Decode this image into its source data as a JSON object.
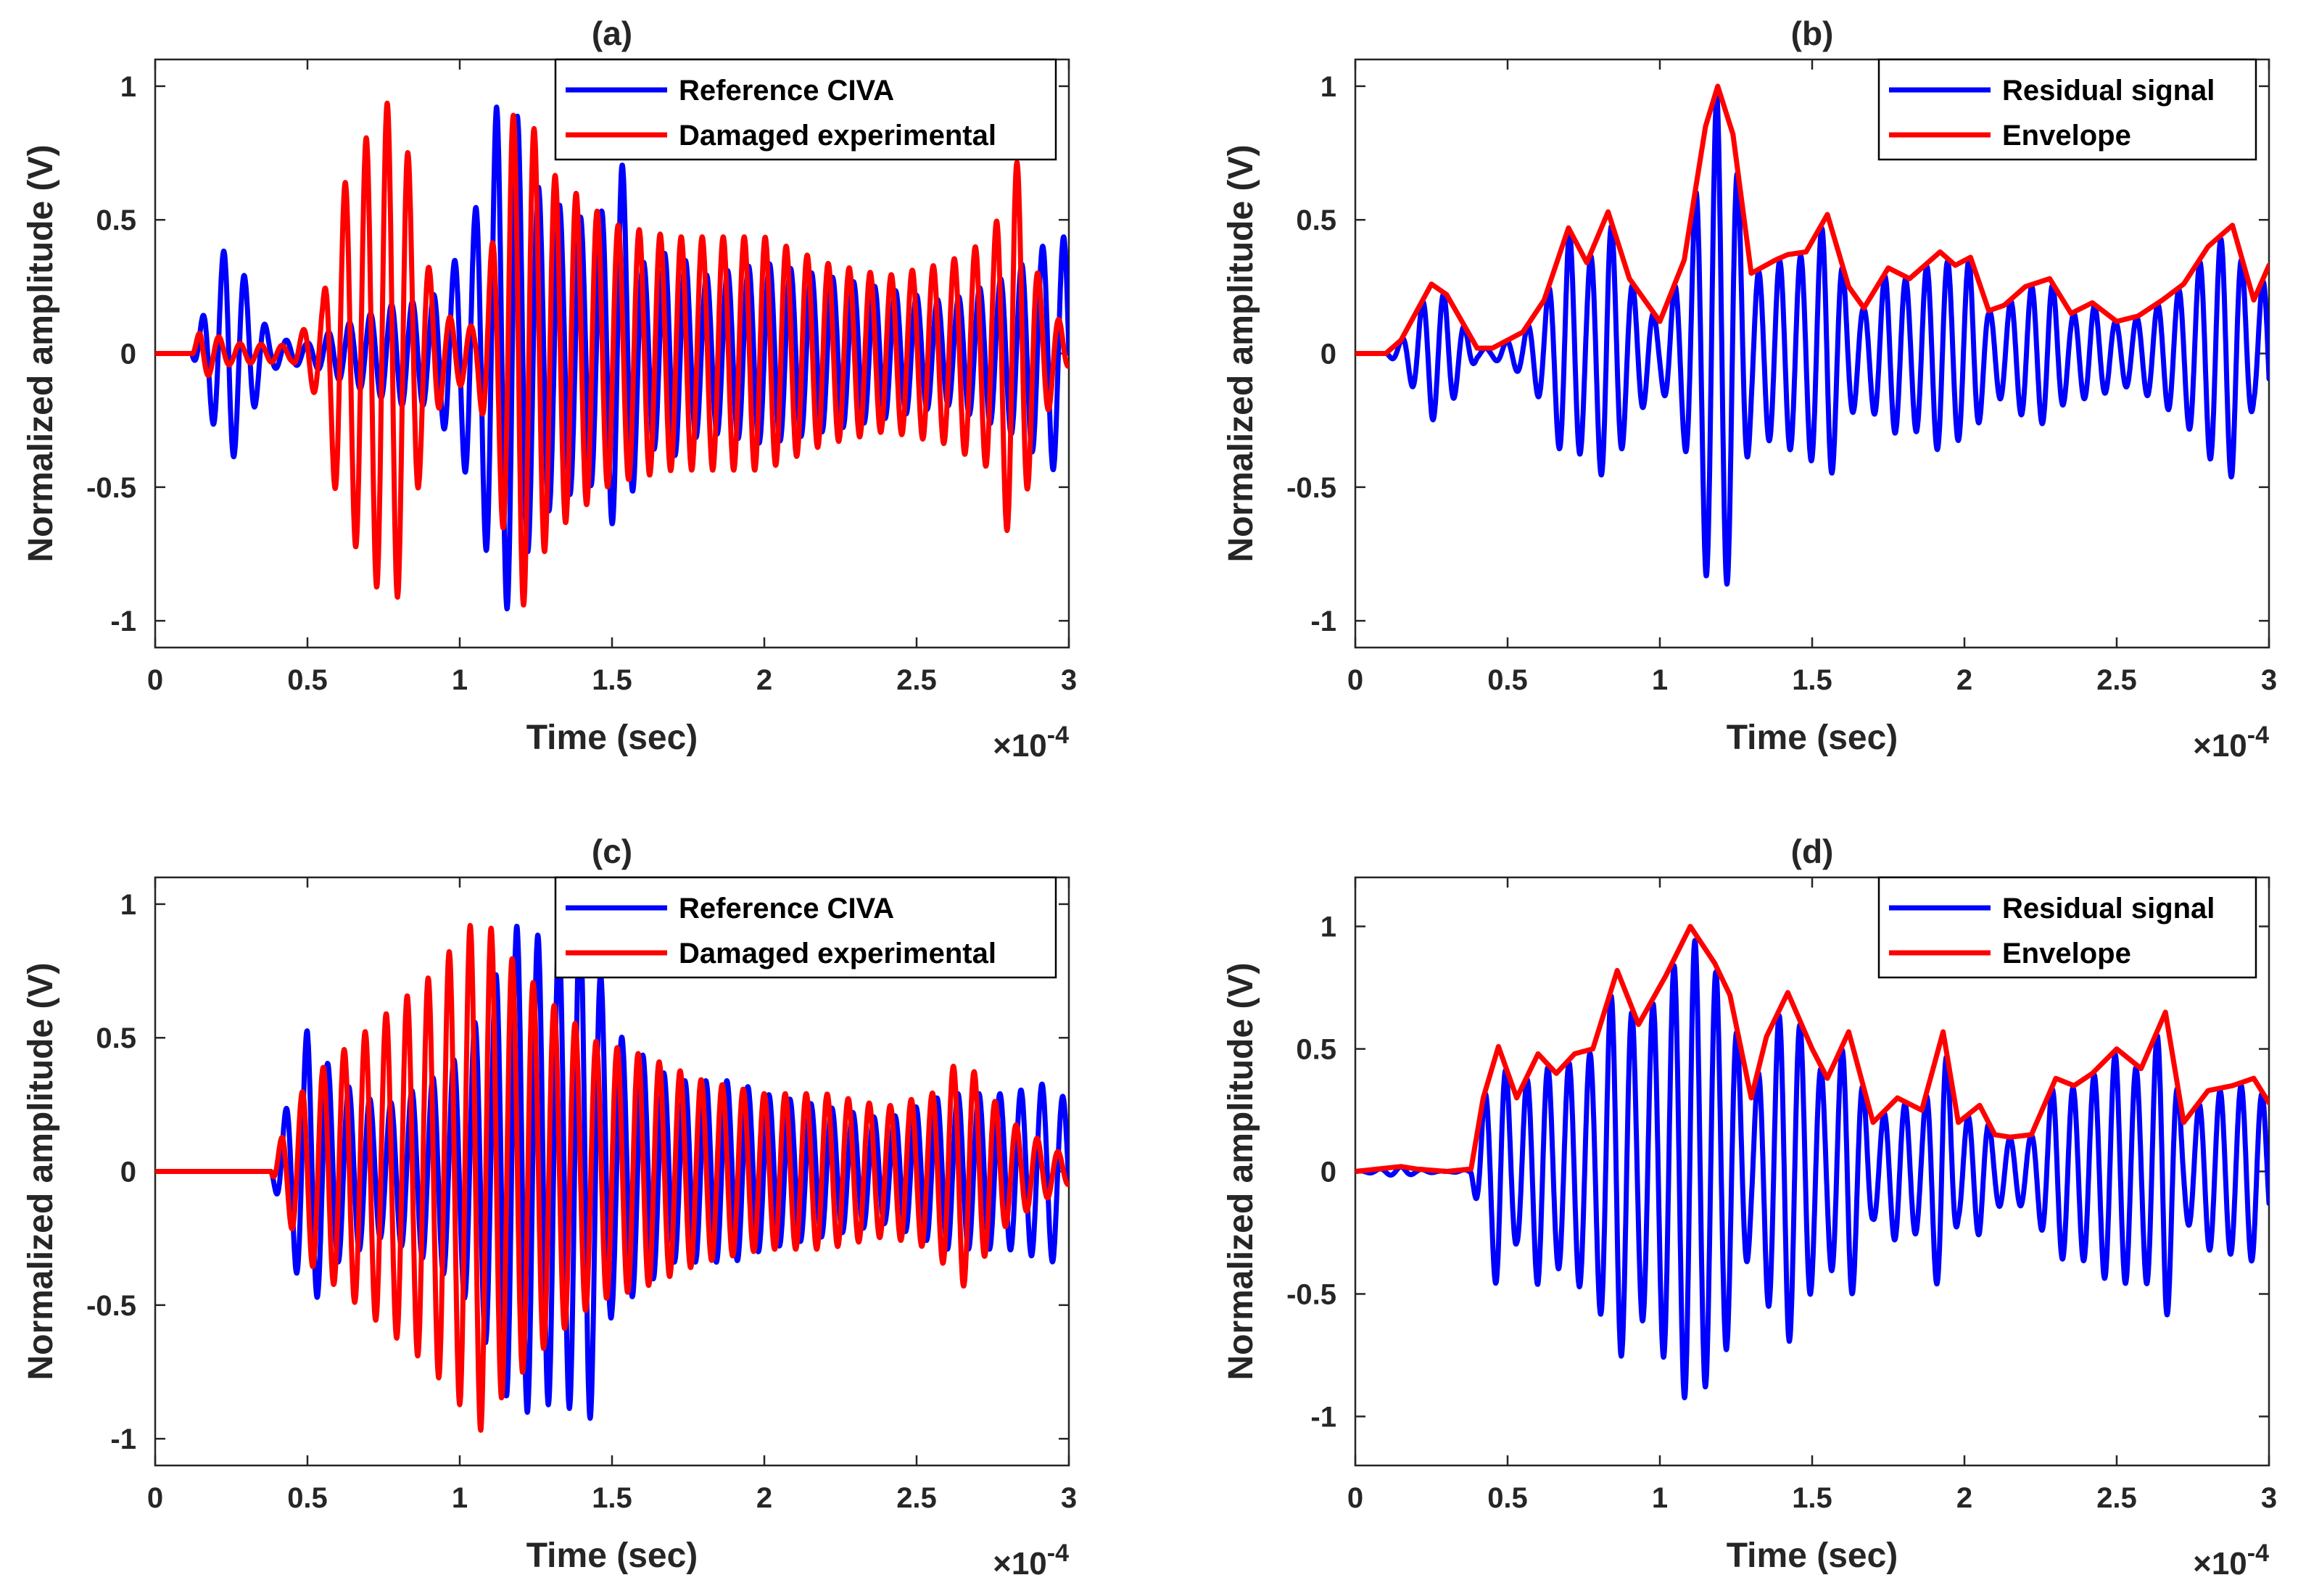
{
  "colors": {
    "blue": "#0000ff",
    "red": "#ff0000",
    "axis": "#262626"
  },
  "chart_data": [
    {
      "id": "a",
      "type": "line",
      "title": "(a)",
      "xlabel": "Time (sec)",
      "ylabel": "Normalized amplitude (V)",
      "x_exponent": "×10",
      "x_exponent_power": "-4",
      "xlim": [
        0,
        3
      ],
      "ylim": [
        -1.1,
        1.1
      ],
      "xticks": [
        0,
        0.5,
        1,
        1.5,
        2,
        2.5,
        3
      ],
      "xtick_labels": [
        "0",
        "0.5",
        "1",
        "1.5",
        "2",
        "2.5",
        "3"
      ],
      "yticks": [
        1,
        0.5,
        0,
        -0.5,
        -1
      ],
      "ytick_labels": [
        "1",
        "0.5",
        "0",
        "-0.5",
        "-1"
      ],
      "legend_position": "top-right",
      "series": [
        {
          "name": "Reference CIVA",
          "color": "#0000ff",
          "kind": "oscillation",
          "freq": 14.5,
          "phase": 0.0,
          "envelope_points": [
            [
              0,
              0
            ],
            [
              0.12,
              0
            ],
            [
              0.17,
              0.2
            ],
            [
              0.24,
              0.45
            ],
            [
              0.3,
              0.28
            ],
            [
              0.38,
              0.06
            ],
            [
              0.5,
              0.04
            ],
            [
              0.6,
              0.1
            ],
            [
              0.8,
              0.2
            ],
            [
              0.9,
              0.2
            ],
            [
              0.98,
              0.35
            ],
            [
              1.05,
              0.55
            ],
            [
              1.12,
              0.95
            ],
            [
              1.17,
              1.0
            ],
            [
              1.25,
              0.65
            ],
            [
              1.35,
              0.55
            ],
            [
              1.45,
              0.5
            ],
            [
              1.53,
              0.75
            ],
            [
              1.6,
              0.35
            ],
            [
              1.7,
              0.4
            ],
            [
              1.8,
              0.3
            ],
            [
              2.0,
              0.35
            ],
            [
              2.2,
              0.3
            ],
            [
              2.4,
              0.25
            ],
            [
              2.6,
              0.2
            ],
            [
              2.8,
              0.3
            ],
            [
              2.95,
              0.45
            ],
            [
              3,
              0.45
            ]
          ]
        },
        {
          "name": "Damaged experimental",
          "color": "#ff0000",
          "kind": "oscillation",
          "freq": 14.5,
          "phase": 1.3,
          "envelope_points": [
            [
              0,
              0
            ],
            [
              0.12,
              0
            ],
            [
              0.15,
              0.1
            ],
            [
              0.25,
              0.04
            ],
            [
              0.45,
              0.03
            ],
            [
              0.55,
              0.2
            ],
            [
              0.6,
              0.6
            ],
            [
              0.7,
              0.85
            ],
            [
              0.78,
              1.0
            ],
            [
              0.82,
              0.85
            ],
            [
              0.88,
              0.4
            ],
            [
              0.95,
              0.15
            ],
            [
              1.05,
              0.1
            ],
            [
              1.12,
              0.5
            ],
            [
              1.17,
              0.9
            ],
            [
              1.2,
              1.0
            ],
            [
              1.3,
              0.7
            ],
            [
              1.5,
              0.5
            ],
            [
              1.7,
              0.45
            ],
            [
              1.9,
              0.45
            ],
            [
              2.0,
              0.45
            ],
            [
              2.2,
              0.35
            ],
            [
              2.4,
              0.3
            ],
            [
              2.6,
              0.35
            ],
            [
              2.75,
              0.45
            ],
            [
              2.82,
              0.8
            ],
            [
              2.9,
              0.3
            ],
            [
              3,
              0.05
            ]
          ]
        }
      ]
    },
    {
      "id": "b",
      "type": "line",
      "title": "(b)",
      "xlabel": "Time (sec)",
      "ylabel": "Normalized amplitude (V)",
      "x_exponent": "×10",
      "x_exponent_power": "-4",
      "xlim": [
        0,
        3
      ],
      "ylim": [
        -1.1,
        1.1
      ],
      "xticks": [
        0,
        0.5,
        1,
        1.5,
        2,
        2.5,
        3
      ],
      "xtick_labels": [
        "0",
        "0.5",
        "1",
        "1.5",
        "2",
        "2.5",
        "3"
      ],
      "yticks": [
        1,
        0.5,
        0,
        -0.5,
        -1
      ],
      "ytick_labels": [
        "1",
        "0.5",
        "0",
        "-0.5",
        "-1"
      ],
      "legend_position": "top-right",
      "series": [
        {
          "name": "Residual signal",
          "color": "#0000ff",
          "kind": "oscillation",
          "follows_envelope": true,
          "freq": 14.5,
          "phase": 0.3
        },
        {
          "name": "Envelope",
          "color": "#ff0000",
          "kind": "envelope",
          "x": [
            0,
            0.1,
            0.15,
            0.25,
            0.3,
            0.4,
            0.45,
            0.5,
            0.55,
            0.62,
            0.7,
            0.76,
            0.83,
            0.9,
            1.0,
            1.08,
            1.15,
            1.19,
            1.24,
            1.3,
            1.38,
            1.42,
            1.48,
            1.55,
            1.62,
            1.67,
            1.75,
            1.82,
            1.92,
            1.97,
            2.02,
            2.08,
            2.13,
            2.2,
            2.28,
            2.35,
            2.42,
            2.5,
            2.57,
            2.65,
            2.72,
            2.8,
            2.88,
            2.95,
            3.0
          ],
          "values": [
            0,
            0,
            0.05,
            0.26,
            0.22,
            0.02,
            0.02,
            0.05,
            0.08,
            0.2,
            0.47,
            0.34,
            0.53,
            0.28,
            0.12,
            0.35,
            0.85,
            1.0,
            0.82,
            0.3,
            0.35,
            0.37,
            0.38,
            0.52,
            0.25,
            0.17,
            0.32,
            0.28,
            0.38,
            0.33,
            0.36,
            0.16,
            0.18,
            0.25,
            0.28,
            0.15,
            0.19,
            0.12,
            0.14,
            0.2,
            0.26,
            0.4,
            0.48,
            0.2,
            0.33
          ]
        }
      ]
    },
    {
      "id": "c",
      "type": "line",
      "title": "(c)",
      "xlabel": "Time (sec)",
      "ylabel": "Normalized amplitude (V)",
      "x_exponent": "×10",
      "x_exponent_power": "-4",
      "xlim": [
        0,
        3
      ],
      "ylim": [
        -1.1,
        1.1
      ],
      "xticks": [
        0,
        0.5,
        1,
        1.5,
        2,
        2.5,
        3
      ],
      "xtick_labels": [
        "0",
        "0.5",
        "1",
        "1.5",
        "2",
        "2.5",
        "3"
      ],
      "yticks": [
        1,
        0.5,
        0,
        -0.5,
        -1
      ],
      "ytick_labels": [
        "1",
        "0.5",
        "0",
        "-0.5",
        "-1"
      ],
      "legend_position": "top-right",
      "series": [
        {
          "name": "Reference CIVA",
          "color": "#0000ff",
          "kind": "oscillation",
          "freq": 14.5,
          "phase": 0.2,
          "envelope_points": [
            [
              0,
              0
            ],
            [
              0.38,
              0
            ],
            [
              0.42,
              0.2
            ],
            [
              0.5,
              0.55
            ],
            [
              0.6,
              0.35
            ],
            [
              0.75,
              0.25
            ],
            [
              0.9,
              0.35
            ],
            [
              1.0,
              0.45
            ],
            [
              1.1,
              0.7
            ],
            [
              1.18,
              0.95
            ],
            [
              1.28,
              0.9
            ],
            [
              1.35,
              0.9
            ],
            [
              1.42,
              1.0
            ],
            [
              1.5,
              0.55
            ],
            [
              1.7,
              0.35
            ],
            [
              1.9,
              0.35
            ],
            [
              2.0,
              0.3
            ],
            [
              2.2,
              0.25
            ],
            [
              2.4,
              0.2
            ],
            [
              2.6,
              0.3
            ],
            [
              2.8,
              0.3
            ],
            [
              2.95,
              0.35
            ],
            [
              3,
              0.25
            ]
          ]
        },
        {
          "name": "Damaged experimental",
          "color": "#ff0000",
          "kind": "oscillation",
          "freq": 14.5,
          "phase": 1.6,
          "envelope_points": [
            [
              0,
              0
            ],
            [
              0.38,
              0
            ],
            [
              0.42,
              0.15
            ],
            [
              0.5,
              0.35
            ],
            [
              0.6,
              0.45
            ],
            [
              0.75,
              0.6
            ],
            [
              0.9,
              0.75
            ],
            [
              1.0,
              0.9
            ],
            [
              1.07,
              1.0
            ],
            [
              1.15,
              0.85
            ],
            [
              1.3,
              0.65
            ],
            [
              1.45,
              0.5
            ],
            [
              1.6,
              0.45
            ],
            [
              1.8,
              0.35
            ],
            [
              2.0,
              0.3
            ],
            [
              2.2,
              0.3
            ],
            [
              2.4,
              0.25
            ],
            [
              2.55,
              0.3
            ],
            [
              2.65,
              0.45
            ],
            [
              2.8,
              0.2
            ],
            [
              3,
              0.05
            ]
          ]
        }
      ]
    },
    {
      "id": "d",
      "type": "line",
      "title": "(d)",
      "xlabel": "Time (sec)",
      "ylabel": "Normalized amplitude (V)",
      "x_exponent": "×10",
      "x_exponent_power": "-4",
      "xlim": [
        0,
        3
      ],
      "ylim": [
        -1.2,
        1.2
      ],
      "xticks": [
        0,
        0.5,
        1,
        1.5,
        2,
        2.5,
        3
      ],
      "xtick_labels": [
        "0",
        "0.5",
        "1",
        "1.5",
        "2",
        "2.5",
        "3"
      ],
      "yticks": [
        1,
        0.5,
        0,
        -0.5,
        -1
      ],
      "ytick_labels": [
        "1",
        "0.5",
        "0",
        "-0.5",
        "-1"
      ],
      "legend_position": "top-right",
      "series": [
        {
          "name": "Residual signal",
          "color": "#0000ff",
          "kind": "oscillation",
          "follows_envelope": true,
          "freq": 14.5,
          "phase": 0.5
        },
        {
          "name": "Envelope",
          "color": "#ff0000",
          "kind": "envelope",
          "x": [
            0,
            0.15,
            0.2,
            0.3,
            0.38,
            0.42,
            0.47,
            0.53,
            0.6,
            0.66,
            0.72,
            0.78,
            0.86,
            0.93,
            1.02,
            1.1,
            1.18,
            1.23,
            1.3,
            1.35,
            1.42,
            1.5,
            1.55,
            1.62,
            1.7,
            1.78,
            1.86,
            1.93,
            1.98,
            2.05,
            2.1,
            2.15,
            2.22,
            2.3,
            2.36,
            2.42,
            2.5,
            2.58,
            2.66,
            2.72,
            2.8,
            2.88,
            2.95,
            3.0
          ],
          "values": [
            0,
            0.02,
            0.01,
            0.0,
            0.01,
            0.3,
            0.51,
            0.3,
            0.48,
            0.4,
            0.48,
            0.5,
            0.82,
            0.6,
            0.8,
            1.0,
            0.85,
            0.72,
            0.3,
            0.55,
            0.73,
            0.5,
            0.38,
            0.57,
            0.2,
            0.3,
            0.25,
            0.57,
            0.2,
            0.27,
            0.15,
            0.14,
            0.15,
            0.38,
            0.35,
            0.4,
            0.5,
            0.42,
            0.65,
            0.2,
            0.33,
            0.35,
            0.38,
            0.28
          ]
        }
      ]
    }
  ]
}
